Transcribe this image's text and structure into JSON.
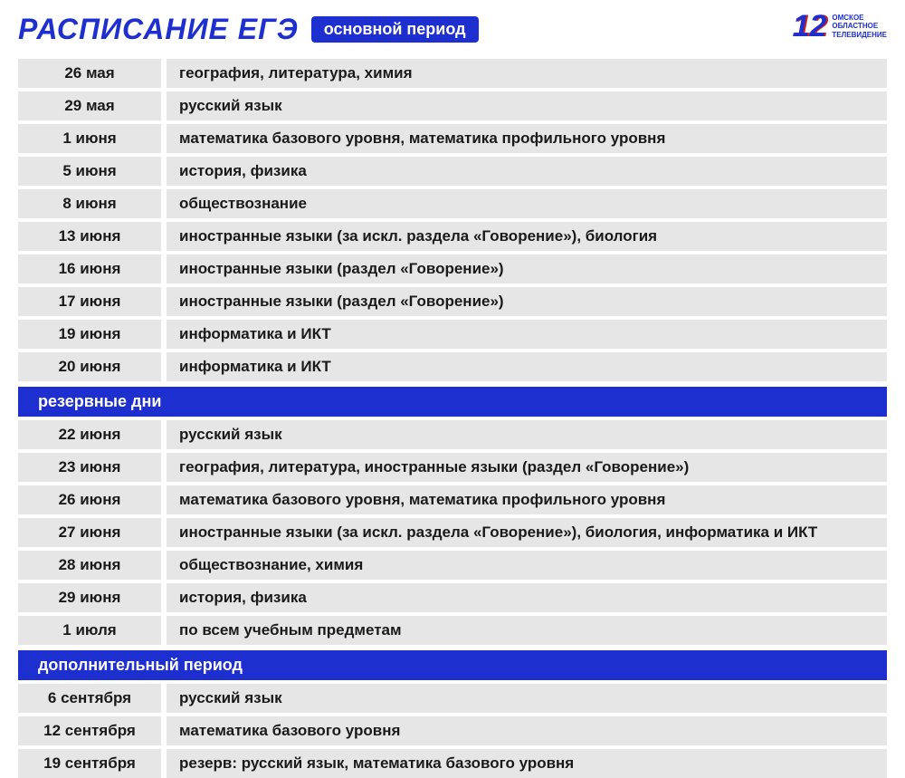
{
  "colors": {
    "brand_blue": "#1e2fd0",
    "brand_red": "#d01e1e",
    "row_bg": "#e6e6e6",
    "text": "#1a1a1a",
    "white": "#ffffff"
  },
  "header": {
    "title": "РАСПИСАНИЕ ЕГЭ",
    "badge": "основной период"
  },
  "logo": {
    "number": "12",
    "line1": "ОМСКОЕ",
    "line2": "ОБЛАСТНОЕ",
    "line3": "ТЕЛЕВИДЕНИЕ"
  },
  "sections": [
    {
      "heading": null,
      "rows": [
        {
          "date": "26 мая",
          "subjects": "география, литература, химия"
        },
        {
          "date": "29 мая",
          "subjects": "русский язык"
        },
        {
          "date": "1 июня",
          "subjects": "математика базового уровня, математика профильного уровня"
        },
        {
          "date": "5 июня",
          "subjects": "история, физика"
        },
        {
          "date": "8 июня",
          "subjects": "обществознание"
        },
        {
          "date": "13 июня",
          "subjects": "иностранные языки (за искл. раздела «Говорение»), биология"
        },
        {
          "date": "16 июня",
          "subjects": "иностранные языки (раздел «Говорение»)"
        },
        {
          "date": "17 июня",
          "subjects": "иностранные языки (раздел «Говорение»)"
        },
        {
          "date": "19 июня",
          "subjects": "информатика и ИКТ"
        },
        {
          "date": "20 июня",
          "subjects": "информатика и ИКТ"
        }
      ]
    },
    {
      "heading": "резервные дни",
      "rows": [
        {
          "date": "22 июня",
          "subjects": "русский язык"
        },
        {
          "date": "23 июня",
          "subjects": "география, литература, иностранные языки (раздел «Говорение»)"
        },
        {
          "date": "26 июня",
          "subjects": "математика базового уровня, математика профильного уровня"
        },
        {
          "date": "27 июня",
          "subjects": "иностранные языки (за искл. раздела «Говорение»), биология, информатика и ИКТ"
        },
        {
          "date": "28 июня",
          "subjects": "обществознание, химия"
        },
        {
          "date": "29 июня",
          "subjects": "история, физика"
        },
        {
          "date": "1 июля",
          "subjects": "по всем учебным предметам"
        }
      ]
    },
    {
      "heading": "дополнительный период",
      "rows": [
        {
          "date": "6 сентября",
          "subjects": "русский язык"
        },
        {
          "date": "12 сентября",
          "subjects": "математика базового уровня"
        },
        {
          "date": "19 сентября",
          "subjects": "резерв: русский язык, математика базового уровня"
        }
      ]
    }
  ]
}
